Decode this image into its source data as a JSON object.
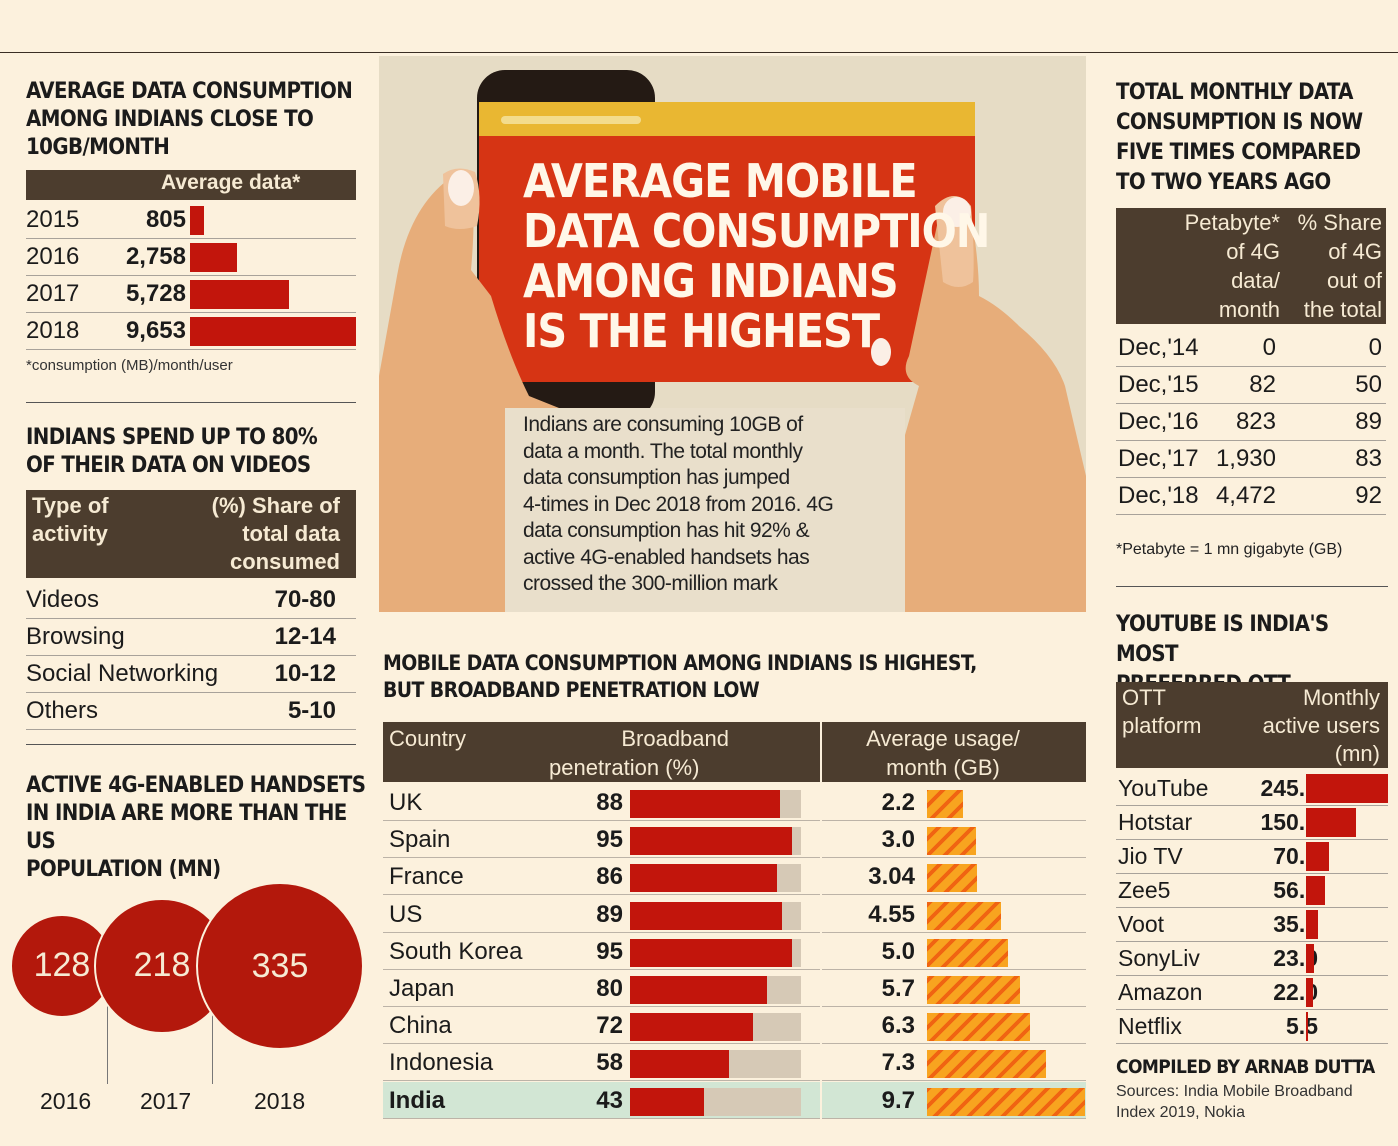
{
  "panels": {
    "avg_data": {
      "title_lines": [
        "AVERAGE DATA CONSUMPTION",
        "AMONG INDIANS CLOSE TO",
        "10GB/MONTH"
      ],
      "header": "Average data*",
      "footnote": "*consumption (MB)/month/user"
    },
    "activity": {
      "title_lines": [
        "INDIANS SPEND UP TO 80%",
        "OF THEIR DATA ON VIDEOS"
      ],
      "header_left": [
        "Type of",
        "activity"
      ],
      "header_right": [
        "(%) Share of",
        "total data",
        "consumed"
      ]
    },
    "handsets": {
      "title_lines": [
        "ACTIVE 4G-ENABLED HANDSETS",
        "IN INDIA ARE MORE THAN THE US",
        "POPULATION (MN)"
      ]
    },
    "hero": {
      "title_lines": [
        "AVERAGE MOBILE",
        "DATA CONSUMPTION",
        "AMONG INDIANS",
        "IS THE HIGHEST"
      ],
      "body_lines": [
        "Indians are consuming 10GB of",
        "data a month. The total monthly",
        "data consumption has jumped",
        "4-times in Dec 2018 from 2016. 4G",
        "data consumption has hit 92% &",
        "active 4G-enabled handsets has",
        "crossed the 300-million mark"
      ]
    },
    "broadband": {
      "title_lines": [
        "MOBILE DATA CONSUMPTION AMONG INDIANS IS HIGHEST,",
        "BUT BROADBAND PENETRATION LOW"
      ],
      "col_country": "Country",
      "col_bp": [
        "Broadband",
        "penetration (%)"
      ],
      "col_avg": [
        "Average usage/",
        "month (GB)"
      ]
    },
    "petabyte": {
      "title_lines": [
        "TOTAL MONTHLY DATA",
        "CONSUMPTION IS NOW",
        "FIVE TIMES COMPARED",
        "TO TWO YEARS AGO"
      ],
      "header_pb": [
        "Petabyte*",
        "of 4G",
        "data/",
        "month"
      ],
      "header_share": [
        "% Share",
        "of 4G",
        "out of",
        "the total"
      ],
      "footnote": "*Petabyte = 1 mn gigabyte (GB)"
    },
    "ott": {
      "title_lines": [
        "YOUTUBE IS INDIA'S MOST",
        "PREFERRED OTT PLATFORM"
      ],
      "header_left": [
        "OTT",
        "platform"
      ],
      "header_right": [
        "Monthly",
        "active users",
        "(mn)"
      ],
      "credit": "COMPILED BY ARNAB DUTTA",
      "sources_lines": [
        "Sources: India Mobile Broadband",
        "Index 2019, Nokia"
      ]
    }
  },
  "chart_data": [
    {
      "type": "bar",
      "title": "AVERAGE DATA CONSUMPTION AMONG INDIANS CLOSE TO 10GB/MONTH",
      "categories": [
        "2015",
        "2016",
        "2017",
        "2018"
      ],
      "values": [
        805,
        2758,
        5728,
        9653
      ],
      "labels": [
        "805",
        "2,758",
        "5,728",
        "9,653"
      ]
    },
    {
      "type": "table",
      "title": "INDIANS SPEND UP TO 80% OF THEIR DATA ON VIDEOS",
      "rows": [
        {
          "activity": "Videos",
          "share": "70-80"
        },
        {
          "activity": "Browsing",
          "share": "12-14"
        },
        {
          "activity": "Social Networking",
          "share": "10-12"
        },
        {
          "activity": "Others",
          "share": "5-10"
        }
      ]
    },
    {
      "type": "bubble",
      "title": "ACTIVE 4G-ENABLED HANDSETS IN INDIA ARE MORE THAN THE US POPULATION (MN)",
      "categories": [
        "2016",
        "2017",
        "2018"
      ],
      "values": [
        128,
        218,
        335
      ]
    },
    {
      "type": "bar",
      "title": "MOBILE DATA CONSUMPTION AMONG INDIANS IS HIGHEST, BUT BROADBAND PENETRATION LOW",
      "categories": [
        "UK",
        "Spain",
        "France",
        "US",
        "South Korea",
        "Japan",
        "China",
        "Indonesia",
        "India"
      ],
      "series": [
        {
          "name": "Broadband penetration (%)",
          "values": [
            88,
            95,
            86,
            89,
            95,
            80,
            72,
            58,
            43
          ]
        },
        {
          "name": "Average usage/ month (GB)",
          "values": [
            2.2,
            3.0,
            3.04,
            4.55,
            5.0,
            5.7,
            6.3,
            7.3,
            9.7
          ],
          "labels": [
            "2.2",
            "3.0",
            "3.04",
            "4.55",
            "5.0",
            "5.7",
            "6.3",
            "7.3",
            "9.7"
          ]
        }
      ],
      "highlight": "India"
    },
    {
      "type": "table",
      "title": "TOTAL MONTHLY DATA CONSUMPTION IS NOW FIVE TIMES COMPARED TO TWO YEARS AGO",
      "rows": [
        {
          "month": "Dec,'14",
          "petabyte": "0",
          "share": "0"
        },
        {
          "month": "Dec,'15",
          "petabyte": "82",
          "share": "50"
        },
        {
          "month": "Dec,'16",
          "petabyte": "823",
          "share": "89"
        },
        {
          "month": "Dec,'17",
          "petabyte": "1,930",
          "share": "83"
        },
        {
          "month": "Dec,'18",
          "petabyte": "4,472",
          "share": "92"
        }
      ]
    },
    {
      "type": "bar",
      "title": "YOUTUBE IS INDIA'S MOST PREFERRED OTT PLATFORM",
      "categories": [
        "YouTube",
        "Hotstar",
        "Jio TV",
        "Zee5",
        "Voot",
        "SonyLiv",
        "Amazon",
        "Netflix"
      ],
      "values": [
        245.0,
        150.0,
        70.0,
        56.0,
        35.0,
        23.0,
        22.0,
        5.5
      ],
      "labels": [
        "245.0",
        "150.0",
        "70.0",
        "56.0",
        "35.0",
        "23.0",
        "22.0",
        "5.5"
      ]
    }
  ],
  "colors": {
    "bg": "#fcf1dd",
    "dark": "#4c3d2e",
    "red": "#c2150c",
    "orange": "#f8a41f",
    "highlight": "#d2e6d4"
  }
}
